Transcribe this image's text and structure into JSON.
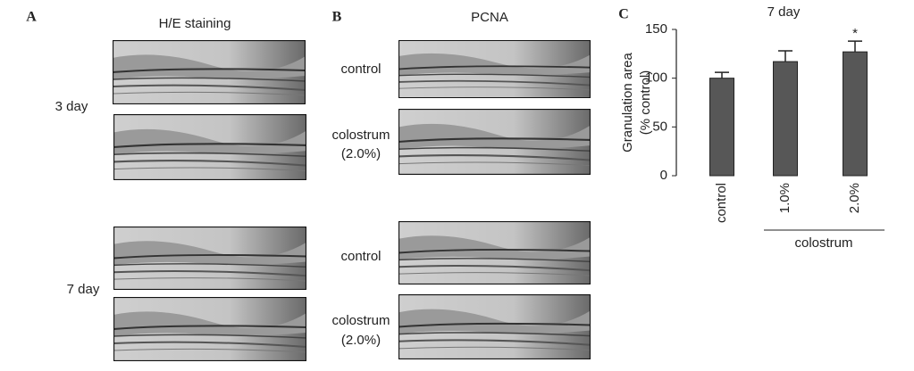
{
  "panel_a": {
    "label": "A",
    "title": "H/E staining",
    "rows": [
      "3 day",
      "7 day"
    ]
  },
  "panel_b": {
    "label": "B",
    "title": "PCNA",
    "rows": [
      [
        "control"
      ],
      [
        "colostrum",
        "(2.0%)"
      ],
      [
        "control"
      ],
      [
        "colostrum",
        "(2.0%)"
      ]
    ]
  },
  "chart_data": {
    "type": "bar",
    "panel_label": "C",
    "title": "7 day",
    "y_label": [
      "Granulation area",
      "(% control)"
    ],
    "categories": [
      "control",
      "1.0%",
      "2.0%"
    ],
    "values": [
      100,
      117,
      127
    ],
    "errors": [
      6,
      11,
      11
    ],
    "annotations": [
      null,
      null,
      "*"
    ],
    "group_label": "colostrum",
    "color": "#575757",
    "ylim": [
      0,
      150
    ],
    "yticks": [
      0,
      50,
      100,
      150
    ]
  }
}
